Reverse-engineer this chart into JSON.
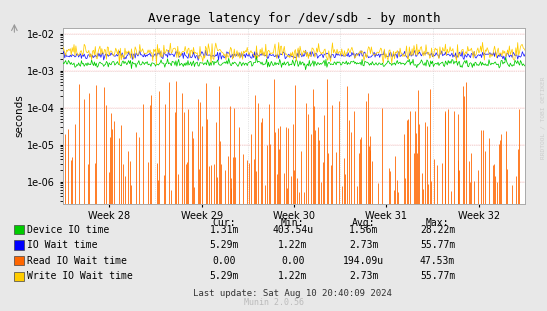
{
  "title": "Average latency for /dev/sdb - by month",
  "ylabel": "seconds",
  "bg_color": "#e8e8e8",
  "plot_bg_color": "#ffffff",
  "x_labels": [
    "Week 28",
    "Week 29",
    "Week 30",
    "Week 31",
    "Week 32"
  ],
  "series": {
    "device_io": {
      "color": "#00cc00"
    },
    "io_wait": {
      "color": "#0000ff"
    },
    "read_io": {
      "color": "#ff6600"
    },
    "write_io": {
      "color": "#ffcc00"
    }
  },
  "legend_items": [
    {
      "color": "#00cc00",
      "label": "Device IO time",
      "cur": "1.31m",
      "min": "403.54u",
      "avg": "1.56m",
      "max": "28.22m"
    },
    {
      "color": "#0000ff",
      "label": "IO Wait time",
      "cur": "5.29m",
      "min": "1.22m",
      "avg": "2.73m",
      "max": "55.77m"
    },
    {
      "color": "#ff6600",
      "label": "Read IO Wait time",
      "cur": "0.00",
      "min": "0.00",
      "avg": "194.09u",
      "max": "47.53m"
    },
    {
      "color": "#ffcc00",
      "label": "Write IO Wait time",
      "cur": "5.29m",
      "min": "1.22m",
      "avg": "2.73m",
      "max": "55.77m"
    }
  ],
  "footer": "Last update: Sat Aug 10 20:40:09 2024",
  "watermark": "Munin 2.0.56",
  "rrdtool_label": "RRDTOOL / TOBI OETIKER",
  "n_points": 500
}
